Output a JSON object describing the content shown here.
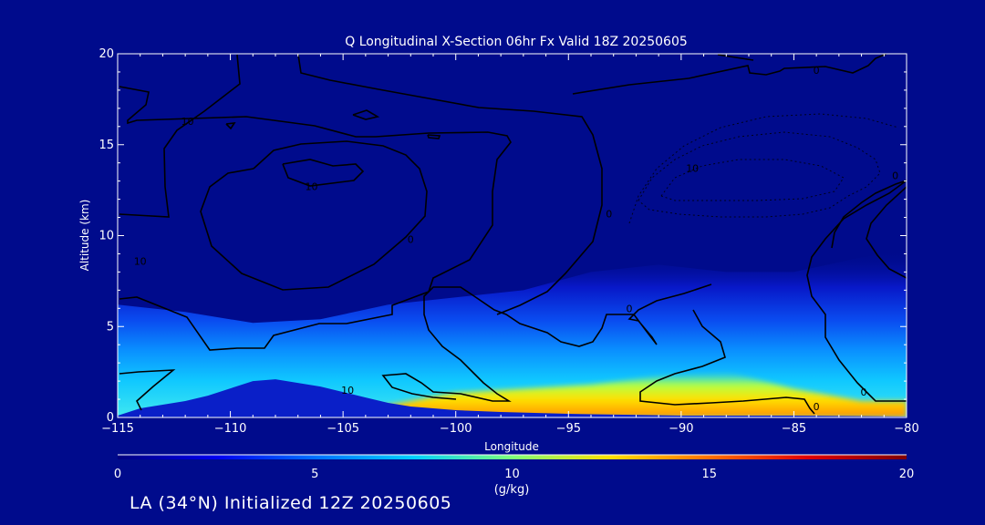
{
  "chart_data": {
    "type": "heatmap",
    "title": "Q Longitudinal X-Section 06hr  Fx Valid 18Z 20250605",
    "xlabel": "Longitude",
    "ylabel": "Altitude (km)",
    "xlim": [
      -115,
      -80
    ],
    "ylim": [
      0,
      20
    ],
    "xticks": [
      "−115",
      "−110",
      "−105",
      "−100",
      "−95",
      "−90",
      "−85",
      "−80"
    ],
    "yticks": [
      "0",
      "5",
      "10",
      "15",
      "20"
    ],
    "colorbar": {
      "label": "(g/kg)",
      "min": 0,
      "max": 20,
      "ticks": [
        "0",
        "5",
        "10",
        "15",
        "20"
      ],
      "colors": [
        "#000080",
        "#0000f0",
        "#0070ff",
        "#00d0ff",
        "#7dff7a",
        "#ffe000",
        "#ff7000",
        "#e00000",
        "#800000"
      ]
    },
    "surface_height_km": [
      [
        -115,
        0.1
      ],
      [
        -114,
        0.5
      ],
      [
        -113,
        0.7
      ],
      [
        -112,
        0.9
      ],
      [
        -111,
        1.2
      ],
      [
        -110,
        1.6
      ],
      [
        -109,
        2.0
      ],
      [
        -108,
        2.1
      ],
      [
        -107,
        1.9
      ],
      [
        -106,
        1.7
      ],
      [
        -105,
        1.4
      ],
      [
        -104,
        1.1
      ],
      [
        -103,
        0.8
      ],
      [
        -102,
        0.6
      ],
      [
        -101,
        0.5
      ],
      [
        -100,
        0.4
      ],
      [
        -98,
        0.3
      ],
      [
        -95,
        0.2
      ],
      [
        -90,
        0.1
      ],
      [
        -85,
        0.1
      ],
      [
        -80,
        0.05
      ]
    ],
    "moisture_layer_top_km": [
      [
        -115,
        6.2
      ],
      [
        -112,
        5.8
      ],
      [
        -109,
        5.2
      ],
      [
        -106,
        5.4
      ],
      [
        -103,
        6.2
      ],
      [
        -100,
        6.6
      ],
      [
        -97,
        7.0
      ],
      [
        -94,
        8.0
      ],
      [
        -91,
        8.4
      ],
      [
        -88,
        8.0
      ],
      [
        -85,
        8.0
      ],
      [
        -82,
        8.8
      ],
      [
        -80,
        9.2
      ]
    ],
    "surface_specific_humidity_gkg": [
      [
        -115,
        7.0
      ],
      [
        -112,
        6.0
      ],
      [
        -109,
        5.0
      ],
      [
        -106,
        6.5
      ],
      [
        -103,
        10.5
      ],
      [
        -100,
        12.0
      ],
      [
        -97,
        12.5
      ],
      [
        -94,
        13.0
      ],
      [
        -91,
        14.0
      ],
      [
        -88,
        14.5
      ],
      [
        -85,
        12.5
      ],
      [
        -82,
        11.0
      ],
      [
        -80,
        11.0
      ]
    ],
    "contour_labels": [
      {
        "text": "10",
        "x": -111.9,
        "y": 16.3
      },
      {
        "text": "10",
        "x": -106.4,
        "y": 12.7
      },
      {
        "text": "10",
        "x": -114.0,
        "y": 8.6
      },
      {
        "text": "0",
        "x": -102.0,
        "y": 9.8
      },
      {
        "text": "0",
        "x": -93.2,
        "y": 11.2
      },
      {
        "text": "0",
        "x": -84.0,
        "y": 19.1
      },
      {
        "text": "10",
        "x": -89.5,
        "y": 13.7
      },
      {
        "text": "0",
        "x": -80.5,
        "y": 13.3
      },
      {
        "text": "0",
        "x": -92.3,
        "y": 6.0
      },
      {
        "text": "10",
        "x": -104.8,
        "y": 1.5
      },
      {
        "text": "0",
        "x": -84.0,
        "y": 0.6
      },
      {
        "text": "0",
        "x": -81.9,
        "y": 1.4
      }
    ]
  },
  "footer_text": "LA (34°N) Initialized 12Z 20250605"
}
